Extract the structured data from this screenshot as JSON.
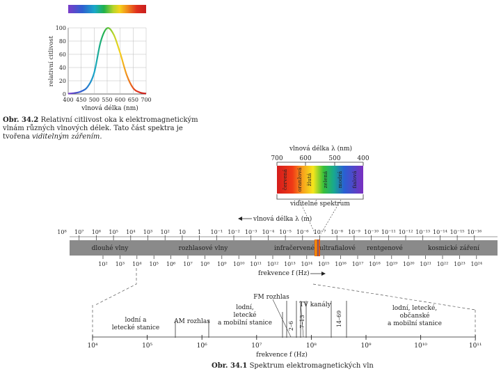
{
  "colors": {
    "band": "#8a8a8a",
    "visible_marker": "#e85a00",
    "line": "#333333"
  },
  "fig342": {
    "ylabel": "relativní citlivost",
    "xlabel": "vlnová délka (nm)",
    "y_ticks": [
      "0",
      "20",
      "40",
      "60",
      "80",
      "100"
    ],
    "x_ticks": [
      "400",
      "450",
      "500",
      "550",
      "600",
      "650",
      "700"
    ],
    "caption_label": "Obr. 34.2",
    "caption_text": "Relativní citlivost oka k elektromagnetickým vlnám různých vlnových délek. Tato část spektra je tvořena",
    "caption_italic": "viditelným zářením."
  },
  "chart_data": {
    "type": "line",
    "title": "",
    "xlabel": "vlnová délka (nm)",
    "ylabel": "relativní citlivost",
    "xlim": [
      400,
      700
    ],
    "ylim": [
      0,
      100
    ],
    "x": [
      400,
      425,
      450,
      475,
      500,
      525,
      550,
      575,
      600,
      625,
      650,
      675,
      700
    ],
    "values": [
      0.5,
      1.5,
      4,
      11,
      32,
      79,
      99.5,
      90,
      62,
      29,
      9,
      2.5,
      0.5
    ]
  },
  "visible": {
    "title": "vlnová délka λ (nm)",
    "ticks": [
      "700",
      "600",
      "500",
      "400"
    ],
    "colors": [
      "červená",
      "oranžová",
      "žlutá",
      "zelená",
      "modrá",
      "fialová"
    ],
    "label": "viditelné spektrum"
  },
  "wavelength_arrow": "vlnová délka λ (m)",
  "wavelength_ticks": [
    "10⁸",
    "10⁷",
    "10⁶",
    "10⁵",
    "10⁴",
    "10³",
    "10²",
    "10",
    "1",
    "10⁻¹",
    "10⁻²",
    "10⁻³",
    "10⁻⁴",
    "10⁻⁵",
    "10⁻⁶",
    "10⁻⁷",
    "10⁻⁸",
    "10⁻⁹",
    "10⁻¹⁰",
    "10⁻¹¹",
    "10⁻¹²",
    "10⁻¹³",
    "10⁻¹⁴",
    "10⁻¹⁵",
    "10⁻¹⁶"
  ],
  "bands": [
    "dlouhé vlny",
    "rozhlasové vlny",
    "infračervené",
    "ultrafialové",
    "rentgenové",
    "kosmické záření"
  ],
  "frequency_ticks": [
    "10²",
    "10³",
    "10⁴",
    "10⁵",
    "10⁶",
    "10⁷",
    "10⁸",
    "10⁹",
    "10¹⁰",
    "10¹¹",
    "10¹²",
    "10¹³",
    "10¹⁴",
    "10¹⁵",
    "10¹⁶",
    "10¹⁷",
    "10¹⁸",
    "10¹⁹",
    "10²⁰",
    "10²¹",
    "10²²",
    "10²³",
    "10²⁴"
  ],
  "frequency_arrow": "frekvence f (Hz)",
  "radio": {
    "labels": [
      "lodní a letecké stanice",
      "AM rozhlas",
      "lodní, letecké a mobilní stanice",
      "FM rozhlas",
      "TV kanály",
      "2–6",
      "7–13",
      "14–69",
      "lodní, letecké, občanské a mobilní stanice"
    ],
    "ticks": [
      "10⁴",
      "10⁵",
      "10⁶",
      "10⁷",
      "10⁸",
      "10⁹",
      "10¹⁰",
      "10¹¹"
    ],
    "axis_label": "frekvence f (Hz)"
  },
  "fig341": {
    "caption_label": "Obr. 34.1",
    "caption_text": "Spektrum elektromagnetických vln"
  }
}
